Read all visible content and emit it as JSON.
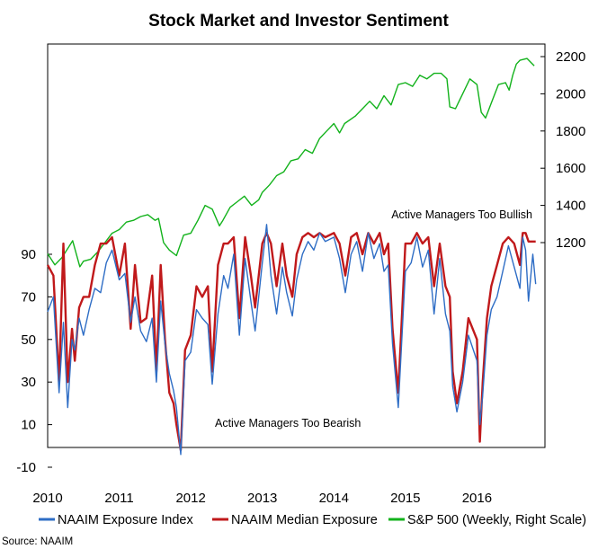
{
  "chart_data": {
    "type": "line",
    "title": "Stock Market and Investor Sentiment",
    "x_ticks": [
      "2010",
      "2011",
      "2012",
      "2013",
      "2014",
      "2015",
      "2016"
    ],
    "xlim": [
      2010.0,
      2016.95
    ],
    "left_axis": {
      "ticks": [
        "90",
        "70",
        "50",
        "30",
        "10",
        "-10"
      ],
      "ylim": [
        -10,
        110
      ]
    },
    "right_axis": {
      "ticks": [
        "2200",
        "2000",
        "1800",
        "1600",
        "1400",
        "1200"
      ],
      "ylim": [
        900,
        2200
      ]
    },
    "annotations": {
      "bullish": "Active Managers Too Bullish",
      "bearish": "Active Managers Too Bearish"
    },
    "legend_position": "bottom",
    "source": "Source: NAAIM",
    "series": [
      {
        "name": "NAAIM Exposure Index",
        "color": "#2E6DC5",
        "axis": "left",
        "x": [
          2010.0,
          2010.08,
          2010.16,
          2010.22,
          2010.28,
          2010.34,
          2010.38,
          2010.44,
          2010.5,
          2010.58,
          2010.66,
          2010.74,
          2010.82,
          2010.9,
          2011.0,
          2011.08,
          2011.16,
          2011.22,
          2011.3,
          2011.38,
          2011.46,
          2011.52,
          2011.58,
          2011.64,
          2011.7,
          2011.76,
          2011.8,
          2011.86,
          2011.92,
          2012.0,
          2012.08,
          2012.16,
          2012.24,
          2012.3,
          2012.38,
          2012.46,
          2012.52,
          2012.6,
          2012.68,
          2012.76,
          2012.84,
          2012.9,
          2013.0,
          2013.06,
          2013.12,
          2013.2,
          2013.28,
          2013.34,
          2013.42,
          2013.48,
          2013.56,
          2013.64,
          2013.72,
          2013.8,
          2013.88,
          2014.0,
          2014.08,
          2014.16,
          2014.24,
          2014.32,
          2014.4,
          2014.48,
          2014.56,
          2014.64,
          2014.7,
          2014.76,
          2014.82,
          2014.9,
          2015.0,
          2015.08,
          2015.16,
          2015.24,
          2015.32,
          2015.4,
          2015.48,
          2015.56,
          2015.62,
          2015.66,
          2015.72,
          2015.8,
          2015.88,
          2016.0,
          2016.04,
          2016.08,
          2016.14,
          2016.2,
          2016.28,
          2016.36,
          2016.44,
          2016.52,
          2016.6,
          2016.64,
          2016.68,
          2016.72,
          2016.78,
          2016.82
        ],
        "values": [
          63,
          70,
          25,
          58,
          18,
          50,
          45,
          60,
          52,
          64,
          74,
          72,
          86,
          92,
          78,
          81,
          58,
          70,
          54,
          49,
          60,
          30,
          68,
          48,
          34,
          26,
          18,
          -4,
          40,
          44,
          64,
          60,
          57,
          29,
          62,
          80,
          74,
          90,
          52,
          88,
          68,
          54,
          86,
          104,
          80,
          62,
          84,
          72,
          61,
          78,
          90,
          96,
          92,
          100,
          96,
          98,
          88,
          72,
          90,
          96,
          82,
          100,
          88,
          95,
          82,
          85,
          48,
          18,
          82,
          86,
          98,
          84,
          92,
          62,
          88,
          62,
          54,
          28,
          16,
          30,
          52,
          40,
          10,
          24,
          52,
          64,
          70,
          82,
          94,
          84,
          74,
          98,
          92,
          68,
          90,
          76
        ]
      },
      {
        "name": "NAAIM Median Exposure",
        "color": "#C0191B",
        "axis": "left",
        "x": [
          2010.0,
          2010.08,
          2010.16,
          2010.22,
          2010.28,
          2010.34,
          2010.38,
          2010.44,
          2010.5,
          2010.58,
          2010.66,
          2010.74,
          2010.82,
          2010.9,
          2011.0,
          2011.08,
          2011.16,
          2011.22,
          2011.3,
          2011.38,
          2011.46,
          2011.52,
          2011.58,
          2011.64,
          2011.7,
          2011.76,
          2011.8,
          2011.86,
          2011.92,
          2012.0,
          2012.08,
          2012.16,
          2012.24,
          2012.3,
          2012.38,
          2012.46,
          2012.52,
          2012.6,
          2012.68,
          2012.76,
          2012.84,
          2012.9,
          2013.0,
          2013.06,
          2013.12,
          2013.2,
          2013.28,
          2013.34,
          2013.42,
          2013.48,
          2013.56,
          2013.64,
          2013.72,
          2013.8,
          2013.88,
          2014.0,
          2014.08,
          2014.16,
          2014.24,
          2014.32,
          2014.4,
          2014.48,
          2014.56,
          2014.64,
          2014.7,
          2014.76,
          2014.82,
          2014.9,
          2015.0,
          2015.08,
          2015.16,
          2015.24,
          2015.32,
          2015.4,
          2015.48,
          2015.56,
          2015.62,
          2015.66,
          2015.72,
          2015.8,
          2015.88,
          2016.0,
          2016.04,
          2016.08,
          2016.14,
          2016.2,
          2016.28,
          2016.36,
          2016.44,
          2016.52,
          2016.6,
          2016.64,
          2016.68,
          2016.72,
          2016.78,
          2016.82
        ],
        "values": [
          85,
          80,
          30,
          95,
          30,
          55,
          40,
          65,
          70,
          70,
          85,
          95,
          95,
          98,
          80,
          95,
          55,
          85,
          58,
          60,
          80,
          35,
          85,
          50,
          25,
          20,
          10,
          -2,
          45,
          52,
          75,
          70,
          75,
          35,
          85,
          95,
          95,
          98,
          60,
          98,
          80,
          65,
          95,
          100,
          95,
          75,
          95,
          80,
          70,
          90,
          98,
          100,
          98,
          100,
          98,
          100,
          95,
          80,
          98,
          100,
          90,
          100,
          95,
          100,
          90,
          95,
          55,
          25,
          95,
          95,
          100,
          95,
          98,
          75,
          95,
          75,
          70,
          35,
          20,
          35,
          60,
          50,
          2,
          30,
          60,
          75,
          85,
          95,
          98,
          95,
          85,
          100,
          100,
          96,
          96,
          96
        ]
      },
      {
        "name": "S&P 500 (Weekly, Right Scale)",
        "color": "#12B21B",
        "axis": "right",
        "x": [
          2010.0,
          2010.1,
          2010.2,
          2010.3,
          2010.35,
          2010.45,
          2010.5,
          2010.6,
          2010.7,
          2010.8,
          2010.9,
          2011.0,
          2011.1,
          2011.2,
          2011.3,
          2011.4,
          2011.5,
          2011.55,
          2011.62,
          2011.7,
          2011.8,
          2011.9,
          2012.0,
          2012.1,
          2012.2,
          2012.3,
          2012.4,
          2012.45,
          2012.55,
          2012.65,
          2012.75,
          2012.85,
          2012.95,
          2013.0,
          2013.1,
          2013.2,
          2013.3,
          2013.4,
          2013.5,
          2013.6,
          2013.7,
          2013.8,
          2013.9,
          2014.0,
          2014.08,
          2014.15,
          2014.3,
          2014.4,
          2014.5,
          2014.6,
          2014.7,
          2014.8,
          2014.9,
          2015.0,
          2015.1,
          2015.2,
          2015.3,
          2015.4,
          2015.5,
          2015.58,
          2015.62,
          2015.7,
          2015.8,
          2015.9,
          2016.0,
          2016.06,
          2016.12,
          2016.2,
          2016.3,
          2016.4,
          2016.45,
          2016.5,
          2016.55,
          2016.6,
          2016.7,
          2016.8
        ],
        "values": [
          1140,
          1080,
          1120,
          1180,
          1210,
          1070,
          1100,
          1110,
          1150,
          1200,
          1250,
          1270,
          1310,
          1320,
          1340,
          1350,
          1320,
          1330,
          1200,
          1160,
          1130,
          1240,
          1250,
          1320,
          1400,
          1380,
          1290,
          1320,
          1390,
          1420,
          1450,
          1400,
          1430,
          1470,
          1510,
          1560,
          1580,
          1640,
          1650,
          1700,
          1680,
          1760,
          1800,
          1840,
          1790,
          1840,
          1880,
          1920,
          1960,
          1920,
          1990,
          1940,
          2050,
          2060,
          2040,
          2100,
          2080,
          2110,
          2110,
          2080,
          1930,
          1920,
          2000,
          2080,
          2050,
          1900,
          1870,
          1950,
          2050,
          2060,
          2020,
          2100,
          2160,
          2180,
          2190,
          2150
        ]
      }
    ]
  }
}
